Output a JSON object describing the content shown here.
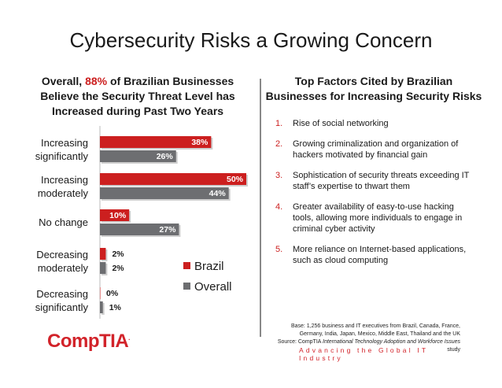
{
  "title": "Cybersecurity Risks a Growing Concern",
  "left_subtitle": {
    "pre": "Overall, ",
    "highlight": "88%",
    "post": " of Brazilian Businesses Believe the Security Threat Level has Increased during Past Two Years"
  },
  "right_subtitle": "Top Factors Cited by Brazilian Businesses for Increasing Security Risks",
  "colors": {
    "brazil": "#cc1f1f",
    "overall": "#6d6e71",
    "accent": "#d2232a"
  },
  "chart_data": {
    "type": "bar",
    "orientation": "horizontal",
    "categories": [
      [
        "Increasing",
        "significantly"
      ],
      [
        "Increasing",
        "moderately"
      ],
      [
        "No change"
      ],
      [
        "Decreasing",
        "moderately"
      ],
      [
        "Decreasing",
        "significantly"
      ]
    ],
    "series": [
      {
        "name": "Brazil",
        "values": [
          38,
          50,
          10,
          2,
          0
        ],
        "labels": [
          "38%",
          "50%",
          "10%",
          "2%",
          "0%"
        ]
      },
      {
        "name": "Overall",
        "values": [
          26,
          44,
          27,
          2,
          1
        ],
        "labels": [
          "26%",
          "44%",
          "27%",
          "2%",
          "1%"
        ]
      }
    ],
    "xlim": [
      0,
      50
    ],
    "legend": [
      "Brazil",
      "Overall"
    ],
    "legend_position": "right"
  },
  "factors": [
    {
      "num": "1.",
      "text": "Rise of social networking"
    },
    {
      "num": "2.",
      "text": "Growing criminalization and organization of hackers motivated by financial gain"
    },
    {
      "num": "3.",
      "text": "Sophistication of security threats exceeding IT staff’s expertise to thwart them"
    },
    {
      "num": "4.",
      "text": "Greater availability of easy-to-use hacking tools, allowing more individuals to engage in criminal cyber activity"
    },
    {
      "num": "5.",
      "text": "More reliance on Internet-based applications, such as cloud computing"
    }
  ],
  "base_note": {
    "line1": "Base: 1,256 business and IT executives from Brazil, Canada, France,",
    "line2": "Germany, India, Japan, Mexico, Middle East, Thailand and the UK",
    "source_pre": "Source: CompTIA ",
    "source_italic": "International Technology Adoption and Workforce Issues",
    "source_post": " study"
  },
  "logo": {
    "text": "CompTIA",
    "mark": "."
  },
  "tagline": "Advancing the Global IT Industry"
}
